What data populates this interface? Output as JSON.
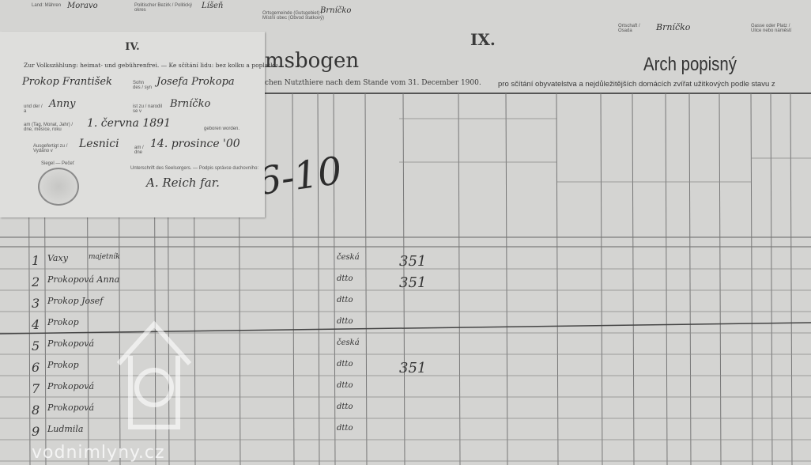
{
  "top_labels": {
    "left_small_1": "Land: Mähren",
    "left_value": "Moravo",
    "district_label": "Politischer Bezirk / Politický okres",
    "district_value": "Líšeň",
    "commune_label": "Ortsgemeinde (Gutsgebiet) / Místní obec (Obvod statkový)",
    "commune_value": "Brníčko",
    "place_label": "Ortschaft / Osada",
    "place_value": "Brníčko",
    "house_label": "Gasse oder Platz / Ulice nebo náměstí"
  },
  "section_number": "IX.",
  "german_title": "msbogen",
  "german_subtitle": "chen Nutzthiere nach dem Stande vom 31. December 1900.",
  "czech_title": "Arch popisný",
  "czech_subtitle": "pro sčítání obyvatelstva a nejdůležitějších domácích zvířat užitkových podle stavu z",
  "slip": {
    "number": "IV.",
    "header": "Zur Volkszählung: heimat- und gebührenfrei. — Ke sčítání lidu: bez kolku a poplatku.",
    "name": "Prokop František",
    "son_of_label": "Sohn des / syn",
    "father": "Josefa Prokopa",
    "mother_label": "und der / a",
    "mother": "Anny",
    "born_label": "ist zu / narodil se v",
    "birthplace": "Brníčko",
    "date_label": "am (Tag, Monat, Jahr) / dne, měsíce, roku",
    "birthdate": "1. června 1891",
    "born_suffix": "geboren worden.",
    "issued_label": "Ausgefertigt zu / Vydáno v",
    "issued_place": "Lesnici",
    "issued_date_label": "am / dne",
    "issued_date": "14. prosince '00",
    "seal_label": "Siegel — Pečeť",
    "signature_label": "Unterschrift des Seelsorgers. — Podpis správce duchovního:",
    "signature": "A. Reich far."
  },
  "annotations": {
    "big": "6-10",
    "mark": "ﬗ"
  },
  "rows": [
    {
      "n": "1",
      "name": "Vaxy",
      "rel": "majetník",
      "lang": "česká",
      "note": "351"
    },
    {
      "n": "2",
      "name": "Prokopová Anna",
      "rel": "",
      "lang": "dtto",
      "note": "351"
    },
    {
      "n": "3",
      "name": "Prokop Josef",
      "rel": "",
      "lang": "dtto",
      "note": ""
    },
    {
      "n": "4",
      "name": "Prokop",
      "rel": "",
      "lang": "dtto",
      "note": ""
    },
    {
      "n": "5",
      "name": "Prokopová",
      "rel": "",
      "lang": "česká",
      "note": ""
    },
    {
      "n": "6",
      "name": "Prokop",
      "rel": "",
      "lang": "dtto",
      "note": "351"
    },
    {
      "n": "7",
      "name": "Prokopová",
      "rel": "",
      "lang": "dtto",
      "note": ""
    },
    {
      "n": "8",
      "name": "Prokopová",
      "rel": "",
      "lang": "dtto",
      "note": ""
    },
    {
      "n": "9",
      "name": "Ludmila",
      "rel": "",
      "lang": "dtto",
      "note": ""
    }
  ],
  "watermark": "vodnimlyny.cz"
}
